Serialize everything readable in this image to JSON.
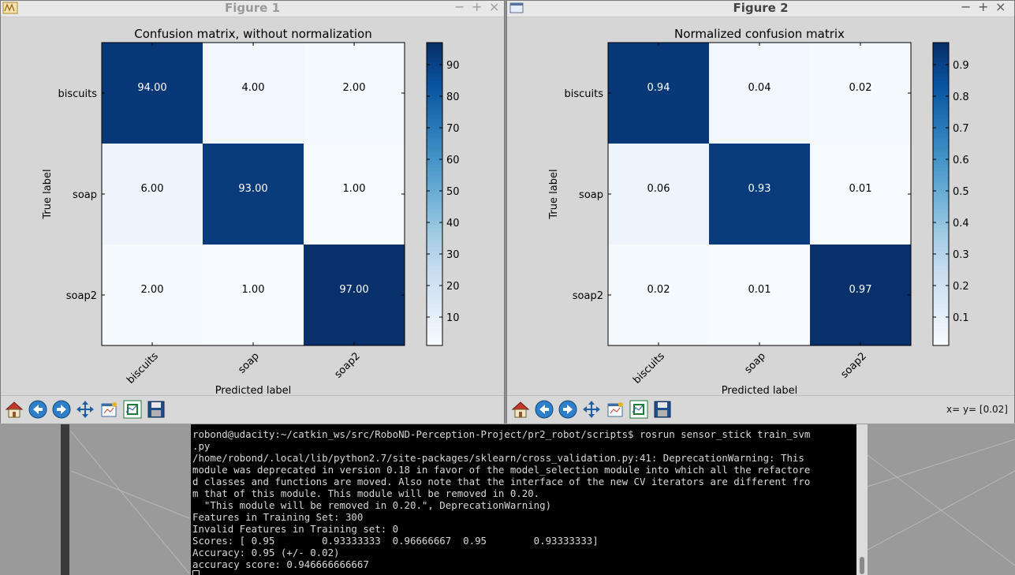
{
  "figures": [
    {
      "window_title": "Figure 1",
      "plot_title": "Confusion matrix, without normalization",
      "labels": [
        "biscuits",
        "soap",
        "soap2"
      ],
      "cells": [
        [
          "94.00",
          "4.00",
          "2.00"
        ],
        [
          "6.00",
          "93.00",
          "1.00"
        ],
        [
          "2.00",
          "1.00",
          "97.00"
        ]
      ],
      "values": [
        [
          94,
          4,
          2
        ],
        [
          6,
          93,
          1
        ],
        [
          2,
          1,
          97
        ]
      ],
      "vmin": 1,
      "vmax": 97,
      "colorbar_ticks": [
        "10",
        "20",
        "30",
        "40",
        "50",
        "60",
        "70",
        "80",
        "90"
      ],
      "colorbar_tick_values": [
        10,
        20,
        30,
        40,
        50,
        60,
        70,
        80,
        90
      ],
      "xlabel": "Predicted label",
      "ylabel": "True label",
      "coord_text": ""
    },
    {
      "window_title": "Figure 2",
      "plot_title": "Normalized confusion matrix",
      "labels": [
        "biscuits",
        "soap",
        "soap2"
      ],
      "cells": [
        [
          "0.94",
          "0.04",
          "0.02"
        ],
        [
          "0.06",
          "0.93",
          "0.01"
        ],
        [
          "0.02",
          "0.01",
          "0.97"
        ]
      ],
      "values": [
        [
          0.94,
          0.04,
          0.02
        ],
        [
          0.06,
          0.93,
          0.01
        ],
        [
          0.02,
          0.01,
          0.97
        ]
      ],
      "vmin": 0.01,
      "vmax": 0.97,
      "colorbar_ticks": [
        "0.1",
        "0.2",
        "0.3",
        "0.4",
        "0.5",
        "0.6",
        "0.7",
        "0.8",
        "0.9"
      ],
      "colorbar_tick_values": [
        0.1,
        0.2,
        0.3,
        0.4,
        0.5,
        0.6,
        0.7,
        0.8,
        0.9
      ],
      "xlabel": "Predicted label",
      "ylabel": "True label",
      "coord_text": "x= y= [0.02]"
    }
  ],
  "window_controls": {
    "minimize": "−",
    "maximize": "+",
    "close": "×"
  },
  "toolbar_icons": [
    "home-icon",
    "back-icon",
    "forward-icon",
    "pan-icon",
    "configure-subplots-icon",
    "zoom-icon",
    "save-icon"
  ],
  "terminal": {
    "lines": [
      "robond@udacity:~/catkin_ws/src/RoboND-Perception-Project/pr2_robot/scripts$ rosrun sensor_stick train_svm",
      ".py",
      "/home/robond/.local/lib/python2.7/site-packages/sklearn/cross_validation.py:41: DeprecationWarning: This",
      "module was deprecated in version 0.18 in favor of the model_selection module into which all the refactore",
      "d classes and functions are moved. Also note that the interface of the new CV iterators are different fro",
      "m that of this module. This module will be removed in 0.20.",
      "  \"This module will be removed in 0.20.\", DeprecationWarning)",
      "Features in Training Set: 300",
      "Invalid Features in Training set: 0",
      "Scores: [ 0.95        0.93333333  0.96666667  0.95        0.93333333]",
      "Accuracy: 0.95 (+/- 0.02)",
      "accuracy score: 0.946666666667"
    ]
  },
  "chart_data": [
    {
      "type": "heatmap",
      "title": "Confusion matrix, without normalization",
      "x": [
        "biscuits",
        "soap",
        "soap2"
      ],
      "y": [
        "biscuits",
        "soap",
        "soap2"
      ],
      "values": [
        [
          94,
          4,
          2
        ],
        [
          6,
          93,
          1
        ],
        [
          2,
          1,
          97
        ]
      ],
      "xlabel": "Predicted label",
      "ylabel": "True label",
      "colorbar": "Blues"
    },
    {
      "type": "heatmap",
      "title": "Normalized confusion matrix",
      "x": [
        "biscuits",
        "soap",
        "soap2"
      ],
      "y": [
        "biscuits",
        "soap",
        "soap2"
      ],
      "values": [
        [
          0.94,
          0.04,
          0.02
        ],
        [
          0.06,
          0.93,
          0.01
        ],
        [
          0.02,
          0.01,
          0.97
        ]
      ],
      "xlabel": "Predicted label",
      "ylabel": "True label",
      "colorbar": "Blues"
    }
  ]
}
